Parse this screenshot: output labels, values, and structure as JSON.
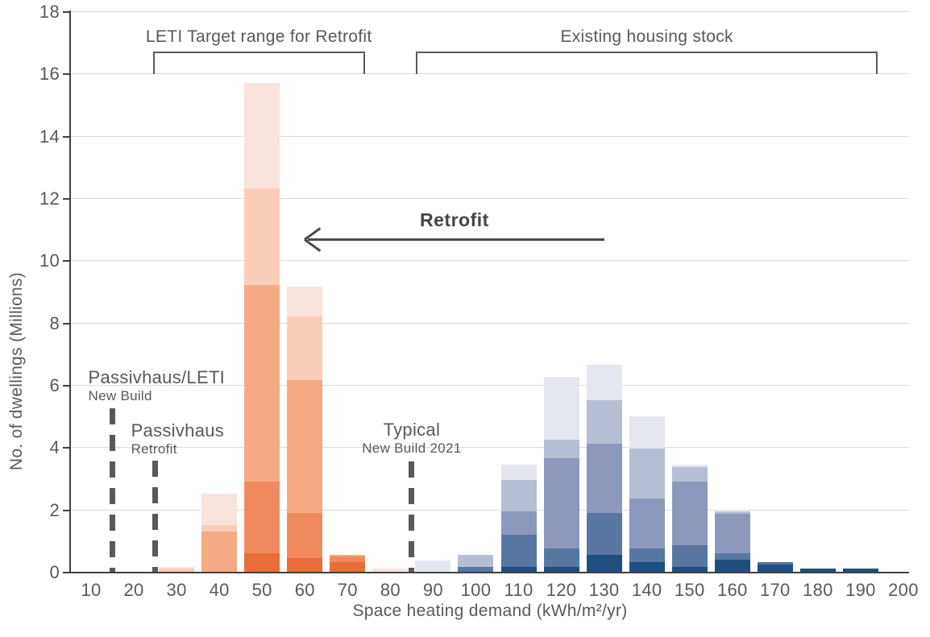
{
  "chart_data": {
    "type": "bar",
    "subtype": "stacked-histogram",
    "title": "",
    "xlabel": "Space heating demand (kWh/m²/yr)",
    "ylabel": "No. of dwellings (Millions)",
    "ylim": [
      0,
      18
    ],
    "y_ticks": [
      0,
      2,
      4,
      6,
      8,
      10,
      12,
      14,
      16,
      18
    ],
    "x_ticks": [
      10,
      20,
      30,
      40,
      50,
      60,
      70,
      80,
      90,
      100,
      110,
      120,
      130,
      140,
      150,
      160,
      170,
      180,
      190,
      200
    ],
    "grid": "horizontal",
    "legend": "none",
    "shade_order_bottom_to_top": [
      "darkest",
      "dark",
      "medium",
      "light",
      "lightest"
    ],
    "groups": [
      {
        "name": "Retrofit scenario (orange)",
        "palette": [
          "#EA6C38",
          "#F08A5E",
          "#F6AA84",
          "#FACDB9",
          "#F8E4DC"
        ],
        "bars": [
          {
            "x": 30,
            "segments": [
              0,
              0,
              0,
              0.1,
              0.05
            ],
            "total": 0.15
          },
          {
            "x": 40,
            "segments": [
              0,
              0,
              1.3,
              0.2,
              1.0
            ],
            "total": 2.5
          },
          {
            "x": 50,
            "segments": [
              0.6,
              2.3,
              6.3,
              3.1,
              3.4
            ],
            "total": 15.7
          },
          {
            "x": 60,
            "segments": [
              0.45,
              1.45,
              4.25,
              2.05,
              0.95
            ],
            "total": 9.15
          },
          {
            "x": 70,
            "segments": [
              0.3,
              0.2,
              0.05,
              0,
              0
            ],
            "total": 0.55
          },
          {
            "x": 80,
            "segments": [
              0,
              0,
              0,
              0,
              0.1
            ],
            "total": 0.1
          }
        ]
      },
      {
        "name": "Existing housing stock (blue)",
        "palette": [
          "#1F4F80",
          "#5977A3",
          "#8D99BC",
          "#B6BED4",
          "#E4E7F0"
        ],
        "bars": [
          {
            "x": 90,
            "segments": [
              0,
              0,
              0,
              0,
              0.35
            ],
            "total": 0.35
          },
          {
            "x": 100,
            "segments": [
              0,
              0.15,
              0,
              0.4,
              0
            ],
            "total": 0.55
          },
          {
            "x": 110,
            "segments": [
              0.15,
              1.05,
              0.75,
              1.0,
              0.5
            ],
            "total": 3.45
          },
          {
            "x": 120,
            "segments": [
              0.15,
              0.6,
              2.9,
              0.6,
              2.0
            ],
            "total": 6.25
          },
          {
            "x": 130,
            "segments": [
              0.55,
              1.35,
              2.2,
              1.4,
              1.15
            ],
            "total": 6.65
          },
          {
            "x": 140,
            "segments": [
              0.3,
              0.45,
              1.6,
              1.6,
              1.05
            ],
            "total": 5.0
          },
          {
            "x": 150,
            "segments": [
              0.15,
              0.7,
              2.05,
              0.45,
              0.1
            ],
            "total": 3.45
          },
          {
            "x": 160,
            "segments": [
              0.4,
              0.2,
              1.25,
              0.1,
              0
            ],
            "total": 1.95
          },
          {
            "x": 170,
            "segments": [
              0.22,
              0.08,
              0,
              0,
              0
            ],
            "total": 0.3
          },
          {
            "x": 180,
            "segments": [
              0.1,
              0,
              0,
              0,
              0
            ],
            "total": 0.1
          },
          {
            "x": 190,
            "segments": [
              0.1,
              0,
              0,
              0,
              0
            ],
            "total": 0.1
          }
        ]
      }
    ],
    "annotations": {
      "brackets": [
        {
          "label": "LETI Target range for Retrofit",
          "from_x": 24.5,
          "to_x": 74
        },
        {
          "label": "Existing housing stock",
          "from_x": 86,
          "to_x": 194
        }
      ],
      "arrow": {
        "label": "Retrofit",
        "from_x": 130,
        "to_x": 60,
        "y": 10.7,
        "direction": "left"
      },
      "vlines": [
        {
          "x": 15,
          "title": "Passivhaus/LETI",
          "subtitle": "New Build"
        },
        {
          "x": 25,
          "title": "Passivhaus",
          "subtitle": "Retrofit"
        },
        {
          "x": 85,
          "title": "Typical",
          "subtitle": "New Build 2021"
        }
      ]
    },
    "colors": {
      "text": "#595959",
      "axis": "#404040",
      "gridline": "#DCDCDC",
      "dashed_line": "#595959"
    }
  }
}
